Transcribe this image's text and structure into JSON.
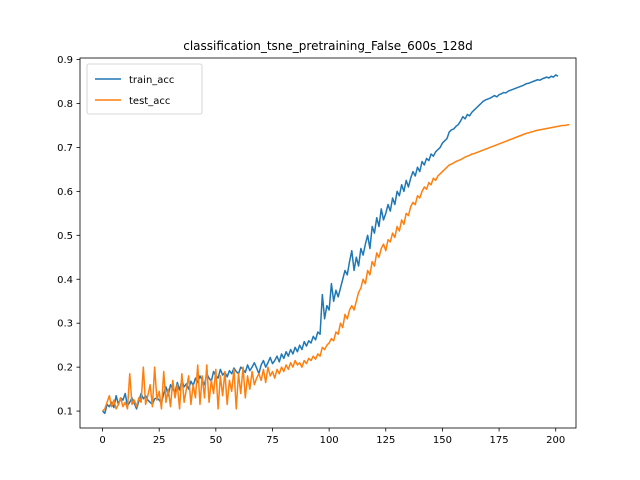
{
  "chart_data": {
    "type": "line",
    "title": "classification_tsne_pretraining_False_600s_128d",
    "xlabel": "",
    "ylabel": "",
    "xlim": [
      -9.95,
      208.95
    ],
    "ylim": [
      0.0615,
      0.9035
    ],
    "x_ticks": [
      0,
      25,
      50,
      75,
      100,
      125,
      150,
      175,
      200
    ],
    "y_ticks": [
      0.1,
      0.2,
      0.3,
      0.4,
      0.5,
      0.6,
      0.7,
      0.8,
      0.9
    ],
    "legend": "top-left",
    "grid": false,
    "series": [
      {
        "name": "train_acc",
        "color": "#1f77b4",
        "x_start": 0,
        "x_step": 1,
        "values": [
          0.1,
          0.095,
          0.115,
          0.11,
          0.12,
          0.108,
          0.135,
          0.115,
          0.13,
          0.125,
          0.14,
          0.112,
          0.12,
          0.13,
          0.118,
          0.105,
          0.122,
          0.14,
          0.128,
          0.135,
          0.125,
          0.12,
          0.115,
          0.128,
          0.13,
          0.125,
          0.118,
          0.14,
          0.155,
          0.135,
          0.16,
          0.15,
          0.142,
          0.165,
          0.148,
          0.17,
          0.155,
          0.162,
          0.15,
          0.168,
          0.158,
          0.175,
          0.165,
          0.18,
          0.17,
          0.16,
          0.185,
          0.175,
          0.168,
          0.19,
          0.18,
          0.175,
          0.195,
          0.182,
          0.188,
          0.178,
          0.192,
          0.185,
          0.198,
          0.19,
          0.185,
          0.2,
          0.195,
          0.188,
          0.205,
          0.192,
          0.2,
          0.21,
          0.198,
          0.185,
          0.205,
          0.215,
          0.2,
          0.21,
          0.222,
          0.208,
          0.215,
          0.225,
          0.212,
          0.23,
          0.22,
          0.235,
          0.225,
          0.24,
          0.23,
          0.245,
          0.235,
          0.25,
          0.24,
          0.258,
          0.248,
          0.26,
          0.255,
          0.27,
          0.262,
          0.28,
          0.275,
          0.365,
          0.31,
          0.34,
          0.33,
          0.39,
          0.35,
          0.375,
          0.36,
          0.38,
          0.4,
          0.42,
          0.41,
          0.44,
          0.465,
          0.42,
          0.45,
          0.43,
          0.47,
          0.455,
          0.48,
          0.5,
          0.47,
          0.52,
          0.505,
          0.54,
          0.52,
          0.56,
          0.535,
          0.55,
          0.57,
          0.555,
          0.585,
          0.57,
          0.6,
          0.59,
          0.615,
          0.6,
          0.625,
          0.61,
          0.63,
          0.645,
          0.635,
          0.655,
          0.645,
          0.668,
          0.66,
          0.675,
          0.67,
          0.685,
          0.68,
          0.69,
          0.695,
          0.7,
          0.71,
          0.715,
          0.72,
          0.735,
          0.74,
          0.742,
          0.748,
          0.752,
          0.76,
          0.77,
          0.765,
          0.775,
          0.772,
          0.78,
          0.785,
          0.79,
          0.795,
          0.8,
          0.805,
          0.808,
          0.81,
          0.812,
          0.815,
          0.818,
          0.815,
          0.82,
          0.822,
          0.825,
          0.824,
          0.828,
          0.83,
          0.832,
          0.834,
          0.836,
          0.838,
          0.84,
          0.842,
          0.845,
          0.846,
          0.848,
          0.85,
          0.852,
          0.854,
          0.853,
          0.856,
          0.858,
          0.86,
          0.858,
          0.862,
          0.86,
          0.865,
          0.862
        ]
      },
      {
        "name": "test_acc",
        "color": "#ff7f0e",
        "x_start": 0,
        "x_step": 1,
        "values": [
          0.1,
          0.105,
          0.12,
          0.135,
          0.11,
          0.125,
          0.105,
          0.115,
          0.13,
          0.11,
          0.12,
          0.105,
          0.185,
          0.115,
          0.125,
          0.11,
          0.13,
          0.12,
          0.2,
          0.115,
          0.135,
          0.16,
          0.11,
          0.2,
          0.125,
          0.145,
          0.105,
          0.19,
          0.12,
          0.15,
          0.11,
          0.17,
          0.13,
          0.16,
          0.105,
          0.185,
          0.12,
          0.15,
          0.18,
          0.115,
          0.16,
          0.13,
          0.205,
          0.115,
          0.18,
          0.13,
          0.205,
          0.12,
          0.17,
          0.14,
          0.195,
          0.105,
          0.18,
          0.135,
          0.19,
          0.115,
          0.17,
          0.145,
          0.195,
          0.105,
          0.185,
          0.14,
          0.2,
          0.13,
          0.18,
          0.15,
          0.19,
          0.16,
          0.175,
          0.185,
          0.17,
          0.195,
          0.165,
          0.2,
          0.18,
          0.19,
          0.175,
          0.195,
          0.185,
          0.2,
          0.19,
          0.205,
          0.195,
          0.21,
          0.2,
          0.215,
          0.205,
          0.21,
          0.2,
          0.215,
          0.208,
          0.22,
          0.215,
          0.225,
          0.218,
          0.23,
          0.225,
          0.245,
          0.24,
          0.25,
          0.255,
          0.265,
          0.26,
          0.28,
          0.275,
          0.3,
          0.29,
          0.32,
          0.31,
          0.33,
          0.34,
          0.33,
          0.35,
          0.37,
          0.38,
          0.4,
          0.39,
          0.42,
          0.41,
          0.44,
          0.43,
          0.46,
          0.45,
          0.47,
          0.48,
          0.465,
          0.49,
          0.485,
          0.505,
          0.495,
          0.52,
          0.51,
          0.535,
          0.525,
          0.55,
          0.545,
          0.565,
          0.575,
          0.57,
          0.59,
          0.585,
          0.6,
          0.61,
          0.605,
          0.62,
          0.615,
          0.63,
          0.625,
          0.635,
          0.64,
          0.645,
          0.65,
          0.655,
          0.66,
          0.662,
          0.665,
          0.668,
          0.67,
          0.672,
          0.675,
          0.678,
          0.68,
          0.682,
          0.685,
          0.686,
          0.688,
          0.69,
          0.692,
          0.694,
          0.696,
          0.698,
          0.7,
          0.702,
          0.704,
          0.706,
          0.708,
          0.71,
          0.712,
          0.714,
          0.716,
          0.718,
          0.72,
          0.722,
          0.724,
          0.726,
          0.728,
          0.73,
          0.732,
          0.733,
          0.735,
          0.736,
          0.738,
          0.739,
          0.74,
          0.741,
          0.742,
          0.743,
          0.744,
          0.745,
          0.746,
          0.747,
          0.748,
          0.749,
          0.75,
          0.75,
          0.751,
          0.752
        ]
      }
    ]
  }
}
